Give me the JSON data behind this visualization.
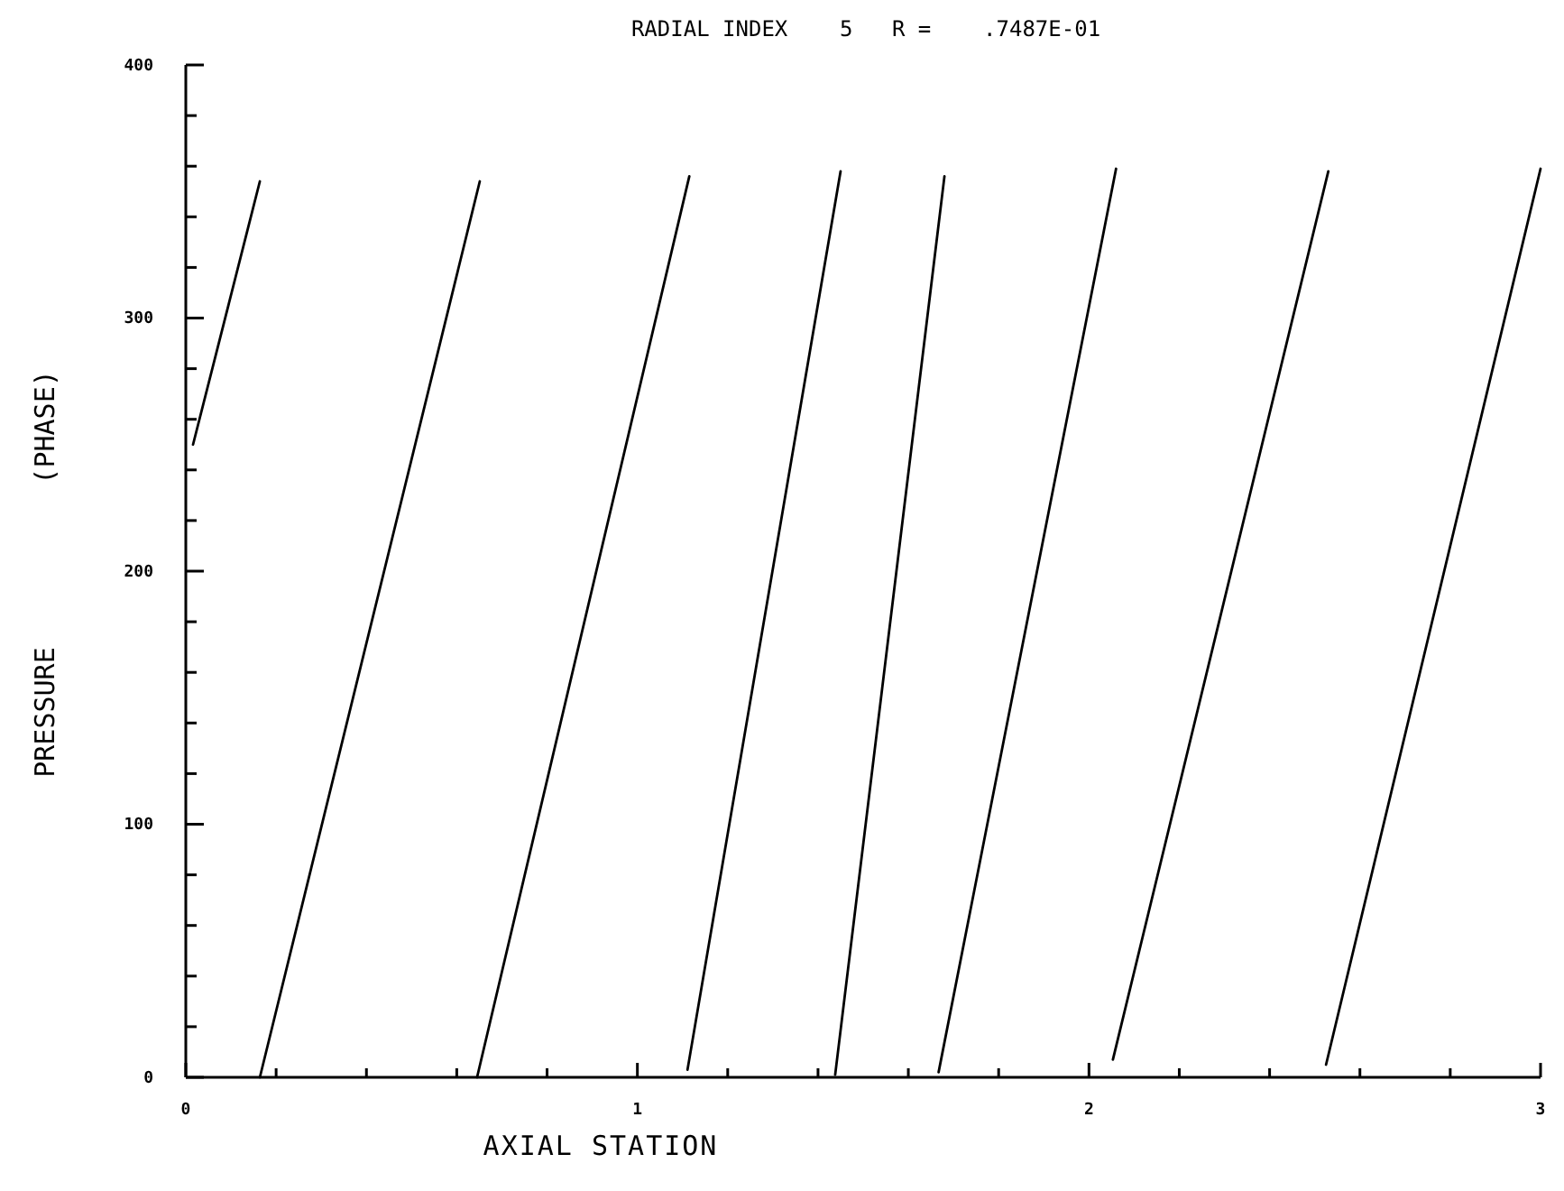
{
  "chart_data": {
    "type": "line",
    "title": "RADIAL INDEX    5   R =    .7487E-01",
    "xlabel": "AXIAL STATION",
    "ylabel": "PRESSURE          (PHASE)",
    "xlim": [
      0,
      3
    ],
    "ylim": [
      0,
      400
    ],
    "xticks": [
      0,
      {
        "value": 0.2,
        "label": null
      },
      {
        "value": 0.4,
        "label": null
      },
      {
        "value": 0.6,
        "label": null
      },
      {
        "value": 0.8,
        "label": null
      },
      1,
      {
        "value": 1.2,
        "label": null
      },
      {
        "value": 1.4,
        "label": null
      },
      {
        "value": 1.6,
        "label": null
      },
      {
        "value": 1.8,
        "label": null
      },
      2,
      {
        "value": 2.2,
        "label": null
      },
      {
        "value": 2.4,
        "label": null
      },
      {
        "value": 2.6,
        "label": null
      },
      {
        "value": 2.8,
        "label": null
      },
      3
    ],
    "yticks": [
      0,
      {
        "value": 20,
        "label": null
      },
      {
        "value": 40,
        "label": null
      },
      {
        "value": 60,
        "label": null
      },
      {
        "value": 80,
        "label": null
      },
      100,
      {
        "value": 120,
        "label": null
      },
      {
        "value": 140,
        "label": null
      },
      {
        "value": 160,
        "label": null
      },
      {
        "value": 180,
        "label": null
      },
      200,
      {
        "value": 220,
        "label": null
      },
      {
        "value": 240,
        "label": null
      },
      {
        "value": 260,
        "label": null
      },
      {
        "value": 280,
        "label": null
      },
      300,
      {
        "value": 320,
        "label": null
      },
      {
        "value": 340,
        "label": null
      },
      {
        "value": 360,
        "label": null
      },
      {
        "value": 380,
        "label": null
      },
      400
    ],
    "grid": false,
    "marker": "none",
    "line_style": "solid",
    "series": [
      {
        "color": "#000000",
        "x": [
          0.016,
          0.164
        ],
        "values": [
          250,
          354
        ]
      },
      {
        "color": "#000000",
        "x": [
          0.164,
          0.651
        ],
        "values": [
          0,
          354
        ]
      },
      {
        "color": "#000000",
        "x": [
          0.645,
          1.115
        ],
        "values": [
          0,
          356
        ]
      },
      {
        "color": "#000000",
        "x": [
          1.111,
          1.45
        ],
        "values": [
          3,
          358
        ]
      },
      {
        "color": "#000000",
        "x": [
          1.438,
          1.68
        ],
        "values": [
          1,
          356
        ]
      },
      {
        "color": "#000000",
        "x": [
          1.667,
          2.06
        ],
        "values": [
          2,
          359
        ]
      },
      {
        "color": "#000000",
        "x": [
          2.053,
          2.53
        ],
        "values": [
          7,
          358
        ]
      },
      {
        "color": "#000000",
        "x": [
          2.525,
          3.0
        ],
        "values": [
          5,
          359
        ]
      }
    ]
  }
}
